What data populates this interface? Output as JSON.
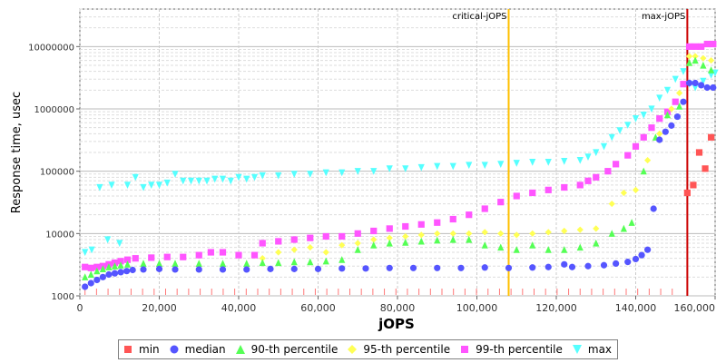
{
  "chart_data": {
    "type": "scatter",
    "xlabel": "jOPS",
    "ylabel": "Response time, usec",
    "xlim": [
      0,
      160000
    ],
    "ylim": [
      1000,
      40000000
    ],
    "yscale": "log",
    "grid": true,
    "legend_placement": "bottom",
    "x_ticks": [
      "0",
      "20,000",
      "40,000",
      "60,000",
      "80,000",
      "100,000",
      "120,000",
      "140,000",
      "160,000"
    ],
    "y_ticks": [
      "1000",
      "10000",
      "100000",
      "1000000",
      "10000000"
    ],
    "markers": [
      {
        "label": "critical-jOPS",
        "x": 108000,
        "color": "#ffc000"
      },
      {
        "label": "max-jOPS",
        "x": 153000,
        "color": "#cc0000"
      }
    ],
    "series": [
      {
        "name": "min",
        "color": "#ff5555",
        "shape": "square",
        "x": [
          153000,
          154500,
          156000,
          157500,
          159000
        ],
        "y": [
          45000,
          60000,
          200000,
          110000,
          350000
        ]
      },
      {
        "name": "median",
        "color": "#5555ff",
        "shape": "circle",
        "points": [
          [
            1300,
            1400
          ],
          [
            2800,
            1600
          ],
          [
            4300,
            1800
          ],
          [
            5800,
            2000
          ],
          [
            7300,
            2200
          ],
          [
            8800,
            2300
          ],
          [
            10300,
            2400
          ],
          [
            11800,
            2500
          ],
          [
            13300,
            2600
          ],
          [
            16000,
            2650
          ],
          [
            20000,
            2700
          ],
          [
            24000,
            2650
          ],
          [
            30000,
            2650
          ],
          [
            36000,
            2650
          ],
          [
            42000,
            2650
          ],
          [
            48000,
            2700
          ],
          [
            54000,
            2700
          ],
          [
            60000,
            2700
          ],
          [
            66000,
            2750
          ],
          [
            72000,
            2750
          ],
          [
            78000,
            2800
          ],
          [
            84000,
            2800
          ],
          [
            90000,
            2800
          ],
          [
            96000,
            2800
          ],
          [
            102000,
            2850
          ],
          [
            108000,
            2800
          ],
          [
            114000,
            2850
          ],
          [
            118000,
            2900
          ],
          [
            122000,
            3200
          ],
          [
            124000,
            2900
          ],
          [
            128000,
            3000
          ],
          [
            132000,
            3100
          ],
          [
            135000,
            3300
          ],
          [
            138000,
            3500
          ],
          [
            140000,
            3900
          ],
          [
            141500,
            4500
          ],
          [
            143000,
            5500
          ],
          [
            144500,
            25000
          ],
          [
            146000,
            320000
          ],
          [
            147500,
            430000
          ],
          [
            149000,
            540000
          ],
          [
            150500,
            750000
          ],
          [
            152000,
            1300000
          ],
          [
            153500,
            2600000
          ],
          [
            155000,
            2600000
          ],
          [
            156500,
            2400000
          ],
          [
            158000,
            2200000
          ],
          [
            159500,
            2200000
          ]
        ]
      },
      {
        "name": "90-th percentile",
        "color": "#55ff55",
        "shape": "triangle",
        "points": [
          [
            1300,
            2000
          ],
          [
            2800,
            2200
          ],
          [
            4300,
            2500
          ],
          [
            5800,
            2700
          ],
          [
            7300,
            2900
          ],
          [
            8800,
            3000
          ],
          [
            10300,
            3100
          ],
          [
            12000,
            3200
          ],
          [
            16000,
            3300
          ],
          [
            20000,
            3300
          ],
          [
            24000,
            3300
          ],
          [
            30000,
            3300
          ],
          [
            36000,
            3300
          ],
          [
            42000,
            3300
          ],
          [
            46000,
            3400
          ],
          [
            50000,
            3400
          ],
          [
            54000,
            3500
          ],
          [
            58000,
            3500
          ],
          [
            62000,
            3600
          ],
          [
            66000,
            3800
          ],
          [
            70000,
            5500
          ],
          [
            74000,
            6500
          ],
          [
            78000,
            7000
          ],
          [
            82000,
            7200
          ],
          [
            86000,
            7500
          ],
          [
            90000,
            7800
          ],
          [
            94000,
            8000
          ],
          [
            98000,
            8000
          ],
          [
            102000,
            6500
          ],
          [
            106000,
            6000
          ],
          [
            110000,
            5500
          ],
          [
            114000,
            6500
          ],
          [
            118000,
            5500
          ],
          [
            122000,
            5500
          ],
          [
            126000,
            6000
          ],
          [
            130000,
            7000
          ],
          [
            134000,
            10000
          ],
          [
            137000,
            12000
          ],
          [
            139000,
            15000
          ],
          [
            142000,
            100000
          ],
          [
            145000,
            350000
          ],
          [
            148000,
            800000
          ],
          [
            151000,
            1100000
          ],
          [
            153500,
            5500000
          ],
          [
            155000,
            6000000
          ],
          [
            157000,
            5000000
          ],
          [
            159000,
            4200000
          ]
        ]
      },
      {
        "name": "95-th percentile",
        "color": "#ffff55",
        "shape": "diamond",
        "points": [
          [
            46000,
            4000
          ],
          [
            50000,
            5000
          ],
          [
            54000,
            5500
          ],
          [
            58000,
            6000
          ],
          [
            62000,
            5000
          ],
          [
            66000,
            6500
          ],
          [
            70000,
            7000
          ],
          [
            74000,
            8000
          ],
          [
            78000,
            8500
          ],
          [
            82000,
            9000
          ],
          [
            86000,
            9500
          ],
          [
            90000,
            10000
          ],
          [
            94000,
            10000
          ],
          [
            98000,
            10000
          ],
          [
            102000,
            10500
          ],
          [
            106000,
            10000
          ],
          [
            110000,
            9500
          ],
          [
            114000,
            10000
          ],
          [
            118000,
            10500
          ],
          [
            122000,
            11000
          ],
          [
            126000,
            11500
          ],
          [
            130000,
            12000
          ],
          [
            134000,
            30000
          ],
          [
            137000,
            45000
          ],
          [
            140000,
            50000
          ],
          [
            143000,
            150000
          ],
          [
            146000,
            400000
          ],
          [
            149000,
            1000000
          ],
          [
            151000,
            1800000
          ],
          [
            153500,
            7000000
          ],
          [
            155000,
            7000000
          ],
          [
            157000,
            6500000
          ],
          [
            159000,
            6000000
          ]
        ]
      },
      {
        "name": "99-th percentile",
        "color": "#ff55ff",
        "shape": "square",
        "points": [
          [
            1300,
            2900
          ],
          [
            2800,
            2800
          ],
          [
            4300,
            2900
          ],
          [
            5800,
            3000
          ],
          [
            7300,
            3200
          ],
          [
            8800,
            3400
          ],
          [
            10300,
            3600
          ],
          [
            12000,
            3800
          ],
          [
            14000,
            4000
          ],
          [
            18000,
            4100
          ],
          [
            22000,
            4200
          ],
          [
            26000,
            4200
          ],
          [
            30000,
            4500
          ],
          [
            33000,
            5000
          ],
          [
            36000,
            5000
          ],
          [
            40000,
            4500
          ],
          [
            44000,
            4500
          ],
          [
            46000,
            7000
          ],
          [
            50000,
            7500
          ],
          [
            54000,
            8000
          ],
          [
            58000,
            8500
          ],
          [
            62000,
            9000
          ],
          [
            66000,
            9000
          ],
          [
            70000,
            10000
          ],
          [
            74000,
            11000
          ],
          [
            78000,
            12000
          ],
          [
            82000,
            13000
          ],
          [
            86000,
            14000
          ],
          [
            90000,
            15000
          ],
          [
            94000,
            17000
          ],
          [
            98000,
            20000
          ],
          [
            102000,
            25000
          ],
          [
            106000,
            32000
          ],
          [
            110000,
            40000
          ],
          [
            114000,
            45000
          ],
          [
            118000,
            50000
          ],
          [
            122000,
            55000
          ],
          [
            126000,
            60000
          ],
          [
            128000,
            70000
          ],
          [
            130000,
            80000
          ],
          [
            133000,
            100000
          ],
          [
            135000,
            130000
          ],
          [
            138000,
            180000
          ],
          [
            140000,
            250000
          ],
          [
            142000,
            350000
          ],
          [
            144000,
            500000
          ],
          [
            146000,
            700000
          ],
          [
            148000,
            900000
          ],
          [
            150000,
            1300000
          ],
          [
            152000,
            2500000
          ],
          [
            153500,
            10000000
          ],
          [
            155000,
            10000000
          ],
          [
            156500,
            10000000
          ],
          [
            158000,
            11000000
          ],
          [
            159500,
            11000000
          ]
        ]
      },
      {
        "name": "max",
        "color": "#55ffff",
        "shape": "triangle-down",
        "points": [
          [
            1300,
            5000
          ],
          [
            3000,
            5500
          ],
          [
            5000,
            55000
          ],
          [
            7000,
            8000
          ],
          [
            8000,
            60000
          ],
          [
            10000,
            7000
          ],
          [
            12000,
            60000
          ],
          [
            14000,
            80000
          ],
          [
            16000,
            55000
          ],
          [
            18000,
            60000
          ],
          [
            20000,
            60000
          ],
          [
            22000,
            65000
          ],
          [
            24000,
            90000
          ],
          [
            26000,
            70000
          ],
          [
            28000,
            70000
          ],
          [
            30000,
            70000
          ],
          [
            32000,
            70000
          ],
          [
            34000,
            75000
          ],
          [
            36000,
            75000
          ],
          [
            38000,
            70000
          ],
          [
            40000,
            80000
          ],
          [
            42000,
            75000
          ],
          [
            44000,
            80000
          ],
          [
            46000,
            85000
          ],
          [
            50000,
            85000
          ],
          [
            54000,
            90000
          ],
          [
            58000,
            90000
          ],
          [
            62000,
            95000
          ],
          [
            66000,
            95000
          ],
          [
            70000,
            100000
          ],
          [
            74000,
            100000
          ],
          [
            78000,
            110000
          ],
          [
            82000,
            110000
          ],
          [
            86000,
            115000
          ],
          [
            90000,
            120000
          ],
          [
            94000,
            120000
          ],
          [
            98000,
            125000
          ],
          [
            102000,
            125000
          ],
          [
            106000,
            130000
          ],
          [
            110000,
            135000
          ],
          [
            114000,
            140000
          ],
          [
            118000,
            140000
          ],
          [
            122000,
            145000
          ],
          [
            126000,
            150000
          ],
          [
            128000,
            170000
          ],
          [
            130000,
            200000
          ],
          [
            132000,
            250000
          ],
          [
            134000,
            350000
          ],
          [
            136000,
            450000
          ],
          [
            138000,
            550000
          ],
          [
            140000,
            700000
          ],
          [
            142000,
            800000
          ],
          [
            144000,
            1000000
          ],
          [
            146000,
            1500000
          ],
          [
            148000,
            2000000
          ],
          [
            150000,
            3000000
          ],
          [
            152000,
            4000000
          ],
          [
            153500,
            2500000
          ],
          [
            155000,
            2200000
          ],
          [
            157000,
            2800000
          ],
          [
            159000,
            3500000
          ],
          [
            160000,
            3800000
          ]
        ]
      }
    ]
  }
}
